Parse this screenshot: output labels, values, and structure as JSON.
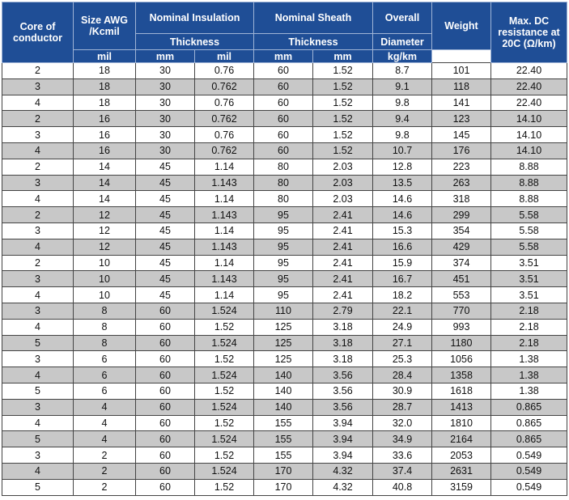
{
  "header": {
    "core": "Core of conductor",
    "size": "Size AWG /Kcmil",
    "insulation": "Nominal Insulation",
    "insulation_sub": "Thickness",
    "sheath": "Nominal Sheath",
    "sheath_sub": "Thickness",
    "overall": "Overall",
    "overall_sub": "Diameter",
    "weight": "Weight",
    "resistance": "Max. DC resistance at 20C (Ω/km)",
    "unit_ins_mil": "mil",
    "unit_ins_mm": "mm",
    "unit_sh_mil": "mil",
    "unit_sh_mm": "mm",
    "unit_diam": "mm",
    "unit_weight": "kg/km"
  },
  "rows": [
    [
      "2",
      "18",
      "30",
      "0.76",
      "60",
      "1.52",
      "8.7",
      "101",
      "22.40"
    ],
    [
      "3",
      "18",
      "30",
      "0.762",
      "60",
      "1.52",
      "9.1",
      "118",
      "22.40"
    ],
    [
      "4",
      "18",
      "30",
      "0.76",
      "60",
      "1.52",
      "9.8",
      "141",
      "22.40"
    ],
    [
      "2",
      "16",
      "30",
      "0.762",
      "60",
      "1.52",
      "9.4",
      "123",
      "14.10"
    ],
    [
      "3",
      "16",
      "30",
      "0.76",
      "60",
      "1.52",
      "9.8",
      "145",
      "14.10"
    ],
    [
      "4",
      "16",
      "30",
      "0.762",
      "60",
      "1.52",
      "10.7",
      "176",
      "14.10"
    ],
    [
      "2",
      "14",
      "45",
      "1.14",
      "80",
      "2.03",
      "12.8",
      "223",
      "8.88"
    ],
    [
      "3",
      "14",
      "45",
      "1.143",
      "80",
      "2.03",
      "13.5",
      "263",
      "8.88"
    ],
    [
      "4",
      "14",
      "45",
      "1.14",
      "80",
      "2.03",
      "14.6",
      "318",
      "8.88"
    ],
    [
      "2",
      "12",
      "45",
      "1.143",
      "95",
      "2.41",
      "14.6",
      "299",
      "5.58"
    ],
    [
      "3",
      "12",
      "45",
      "1.14",
      "95",
      "2.41",
      "15.3",
      "354",
      "5.58"
    ],
    [
      "4",
      "12",
      "45",
      "1.143",
      "95",
      "2.41",
      "16.6",
      "429",
      "5.58"
    ],
    [
      "2",
      "10",
      "45",
      "1.14",
      "95",
      "2.41",
      "15.9",
      "374",
      "3.51"
    ],
    [
      "3",
      "10",
      "45",
      "1.143",
      "95",
      "2.41",
      "16.7",
      "451",
      "3.51"
    ],
    [
      "4",
      "10",
      "45",
      "1.14",
      "95",
      "2.41",
      "18.2",
      "553",
      "3.51"
    ],
    [
      "3",
      "8",
      "60",
      "1.524",
      "110",
      "2.79",
      "22.1",
      "770",
      "2.18"
    ],
    [
      "4",
      "8",
      "60",
      "1.52",
      "125",
      "3.18",
      "24.9",
      "993",
      "2.18"
    ],
    [
      "5",
      "8",
      "60",
      "1.524",
      "125",
      "3.18",
      "27.1",
      "1180",
      "2.18"
    ],
    [
      "3",
      "6",
      "60",
      "1.52",
      "125",
      "3.18",
      "25.3",
      "1056",
      "1.38"
    ],
    [
      "4",
      "6",
      "60",
      "1.524",
      "140",
      "3.56",
      "28.4",
      "1358",
      "1.38"
    ],
    [
      "5",
      "6",
      "60",
      "1.52",
      "140",
      "3.56",
      "30.9",
      "1618",
      "1.38"
    ],
    [
      "3",
      "4",
      "60",
      "1.524",
      "140",
      "3.56",
      "28.7",
      "1413",
      "0.865"
    ],
    [
      "4",
      "4",
      "60",
      "1.52",
      "155",
      "3.94",
      "32.0",
      "1810",
      "0.865"
    ],
    [
      "5",
      "4",
      "60",
      "1.524",
      "155",
      "3.94",
      "34.9",
      "2164",
      "0.865"
    ],
    [
      "3",
      "2",
      "60",
      "1.52",
      "155",
      "3.94",
      "33.6",
      "2053",
      "0.549"
    ],
    [
      "4",
      "2",
      "60",
      "1.524",
      "170",
      "4.32",
      "37.4",
      "2631",
      "0.549"
    ],
    [
      "5",
      "2",
      "60",
      "1.52",
      "170",
      "4.32",
      "40.8",
      "3159",
      "0.549"
    ]
  ]
}
